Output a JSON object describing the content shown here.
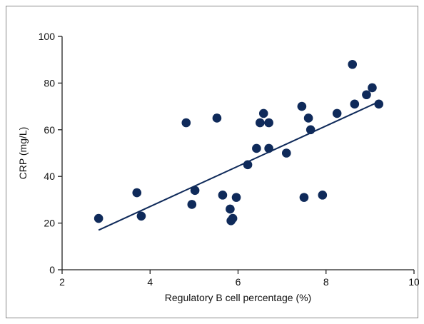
{
  "chart_data": {
    "type": "scatter",
    "title": "",
    "xlabel": "Regulatory B cell percentage (%)",
    "ylabel": "CRP (mg/L)",
    "xlim": [
      2,
      10
    ],
    "ylim": [
      0,
      100
    ],
    "x_ticks": [
      2,
      4,
      6,
      8,
      10
    ],
    "y_ticks": [
      0,
      20,
      40,
      60,
      80,
      100
    ],
    "x_tick_labels": [
      "2",
      "4",
      "6",
      "8",
      "10"
    ],
    "y_tick_labels": [
      "0",
      "20",
      "40",
      "60",
      "80",
      "100"
    ],
    "grid": false,
    "colors": {
      "points": "#0f2a5a",
      "line": "#0f2a5a",
      "axis": "#222222"
    },
    "series": [
      {
        "points": [
          {
            "x": 2.83,
            "y": 22
          },
          {
            "x": 3.7,
            "y": 33
          },
          {
            "x": 3.8,
            "y": 23
          },
          {
            "x": 4.82,
            "y": 63
          },
          {
            "x": 4.95,
            "y": 28
          },
          {
            "x": 5.02,
            "y": 34
          },
          {
            "x": 5.52,
            "y": 65
          },
          {
            "x": 5.65,
            "y": 32
          },
          {
            "x": 5.82,
            "y": 26
          },
          {
            "x": 5.84,
            "y": 21
          },
          {
            "x": 5.88,
            "y": 22
          },
          {
            "x": 5.96,
            "y": 31
          },
          {
            "x": 6.22,
            "y": 45
          },
          {
            "x": 6.42,
            "y": 52
          },
          {
            "x": 6.5,
            "y": 63
          },
          {
            "x": 6.58,
            "y": 67
          },
          {
            "x": 6.7,
            "y": 52
          },
          {
            "x": 6.7,
            "y": 63
          },
          {
            "x": 7.1,
            "y": 50
          },
          {
            "x": 7.45,
            "y": 70
          },
          {
            "x": 7.5,
            "y": 31
          },
          {
            "x": 7.6,
            "y": 65
          },
          {
            "x": 7.65,
            "y": 60
          },
          {
            "x": 7.92,
            "y": 32
          },
          {
            "x": 8.25,
            "y": 67
          },
          {
            "x": 8.6,
            "y": 88
          },
          {
            "x": 8.65,
            "y": 71
          },
          {
            "x": 8.92,
            "y": 75
          },
          {
            "x": 9.05,
            "y": 78
          },
          {
            "x": 9.2,
            "y": 71
          }
        ]
      }
    ],
    "trendline": {
      "x": [
        2.83,
        9.2
      ],
      "y": [
        17,
        72
      ]
    }
  }
}
